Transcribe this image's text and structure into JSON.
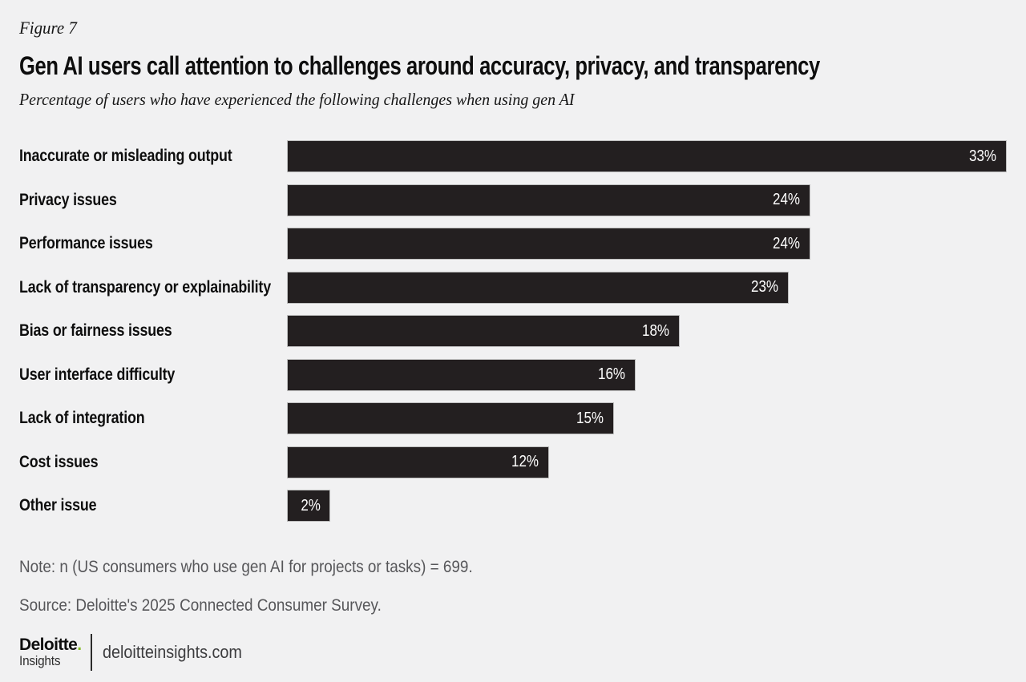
{
  "figure_label": "Figure 7",
  "title": "Gen AI users call attention to challenges around accuracy, privacy, and transparency",
  "subtitle": "Percentage of users who have experienced the following challenges when using gen AI",
  "chart_data": {
    "type": "bar",
    "orientation": "horizontal",
    "categories": [
      "Inaccurate or misleading output",
      "Privacy issues",
      "Performance issues",
      "Lack of transparency or explainability",
      "Bias or fairness issues",
      "User interface difficulty",
      "Lack of integration",
      "Cost issues",
      "Other issue"
    ],
    "values": [
      33,
      24,
      24,
      23,
      18,
      16,
      15,
      12,
      2
    ],
    "value_suffix": "%",
    "xlim": [
      0,
      33
    ],
    "data_labels": "inside-end",
    "grid": false,
    "legend": false,
    "bar_color": "#231f20",
    "value_label_color": "#ffffff"
  },
  "note": "Note: n (US consumers who use gen AI for projects or tasks) = 699.",
  "source": "Source: Deloitte's 2025 Connected Consumer Survey.",
  "footer": {
    "brand": "Deloitte",
    "brand_dot": ".",
    "brand_sub": "Insights",
    "site": "deloitteinsights.com"
  },
  "colors": {
    "background": "#f1f1f2",
    "text": "#0e0e0e",
    "muted_text": "#57575a",
    "bar": "#231f20",
    "accent_green": "#86bc25"
  }
}
